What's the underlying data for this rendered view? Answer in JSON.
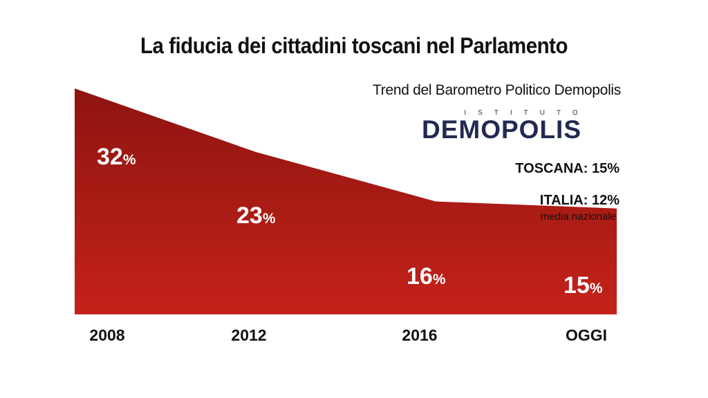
{
  "title": "La fiducia dei cittadini toscani nel Parlamento",
  "subtitle": "Trend del Barometro Politico Demopolis",
  "logo": {
    "top_text": "ISTITUTO",
    "main_text": "DEMOPOLIS",
    "brand_color": "#222a52",
    "accent_color": "#e07a1a"
  },
  "stats": {
    "toscana": "TOSCANA: 15%",
    "italia": "ITALIA: 12%",
    "italia_note": "media nazionale"
  },
  "colors": {
    "area_top": "#8e1410",
    "area_bottom": "#c4221a"
  },
  "chart_data": {
    "type": "area",
    "title": "La fiducia dei cittadini toscani nel Parlamento",
    "categories": [
      "2008",
      "2012",
      "2016",
      "OGGI"
    ],
    "values": [
      32,
      23,
      16,
      15
    ],
    "value_labels": [
      "32",
      "23",
      "16",
      "15"
    ],
    "unit": "%",
    "xlabel": "",
    "ylabel": "",
    "ylim": [
      0,
      32
    ],
    "grid": false
  }
}
